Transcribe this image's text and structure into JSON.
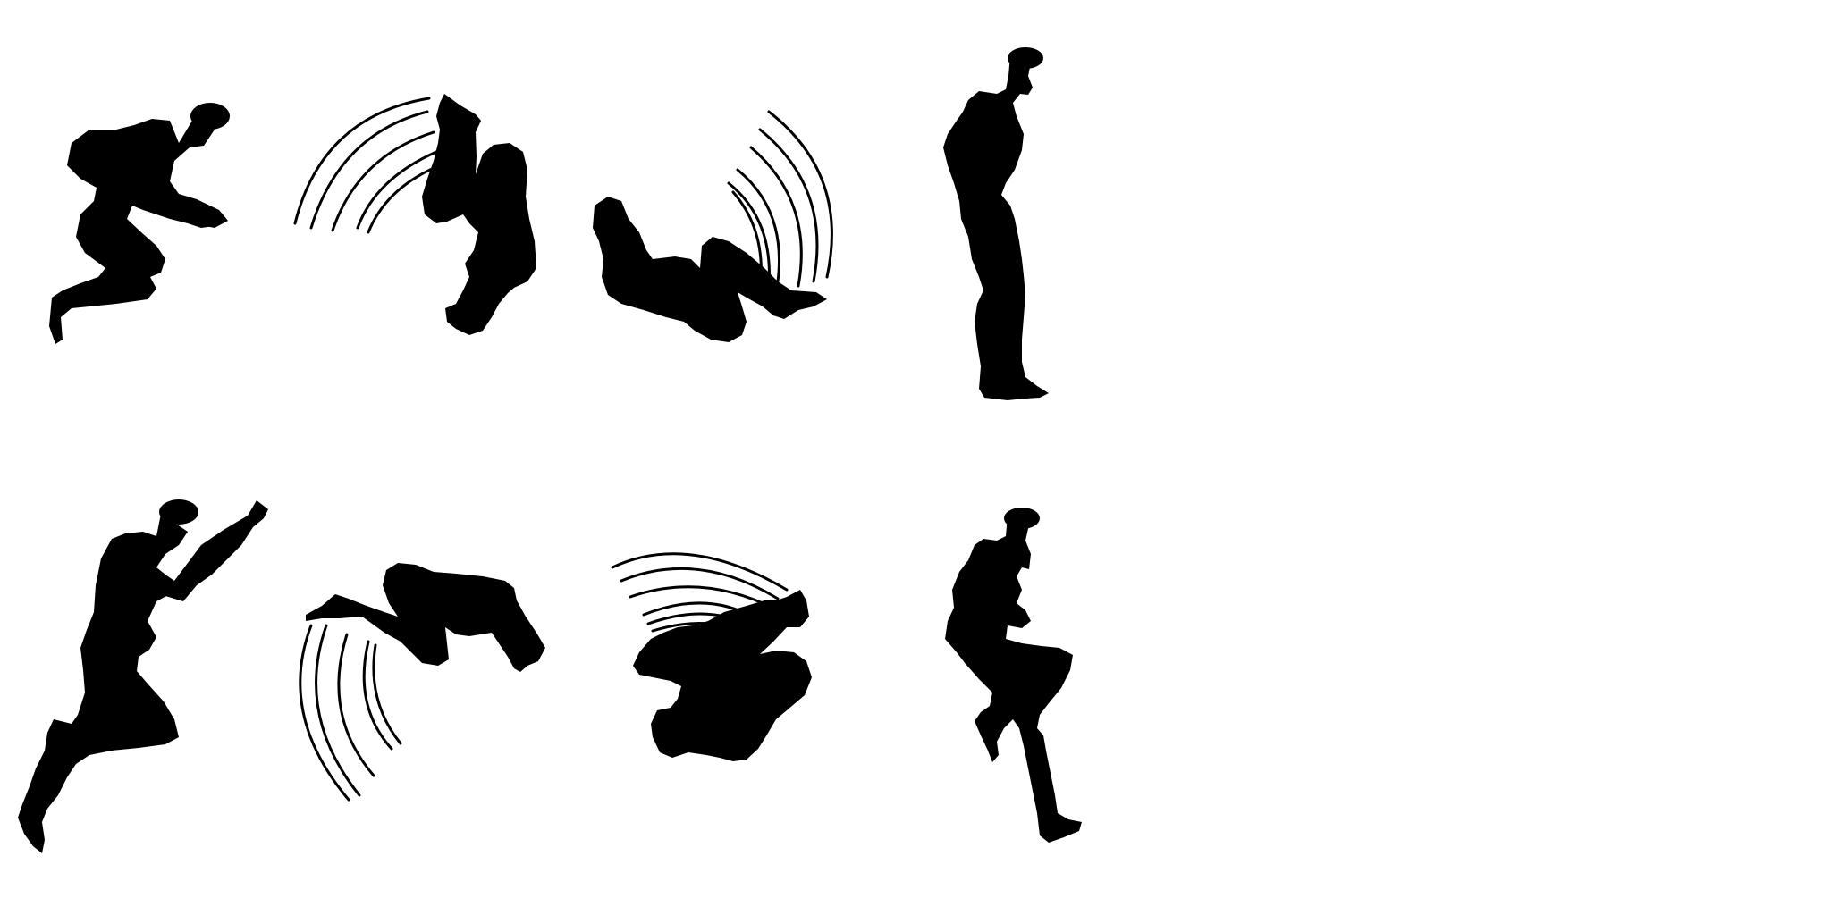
{
  "sprite_sheet": {
    "background": "#ffffff",
    "silhouette_color": "#000000",
    "rows": [
      {
        "name": "row-1",
        "frames": [
          {
            "pose": "crouch-leap"
          },
          {
            "pose": "flip-tuck-head-down",
            "motion_lines": 5
          },
          {
            "pose": "flip-tuck-inverted",
            "motion_lines": 6
          },
          {
            "pose": "landing-standing"
          }
        ]
      },
      {
        "name": "row-2",
        "frames": [
          {
            "pose": "jump-arms-up"
          },
          {
            "pose": "flip-horizontal",
            "motion_lines": 5
          },
          {
            "pose": "flip-tuck-rotating",
            "motion_lines": 6
          },
          {
            "pose": "landing-crouch"
          }
        ]
      }
    ]
  }
}
